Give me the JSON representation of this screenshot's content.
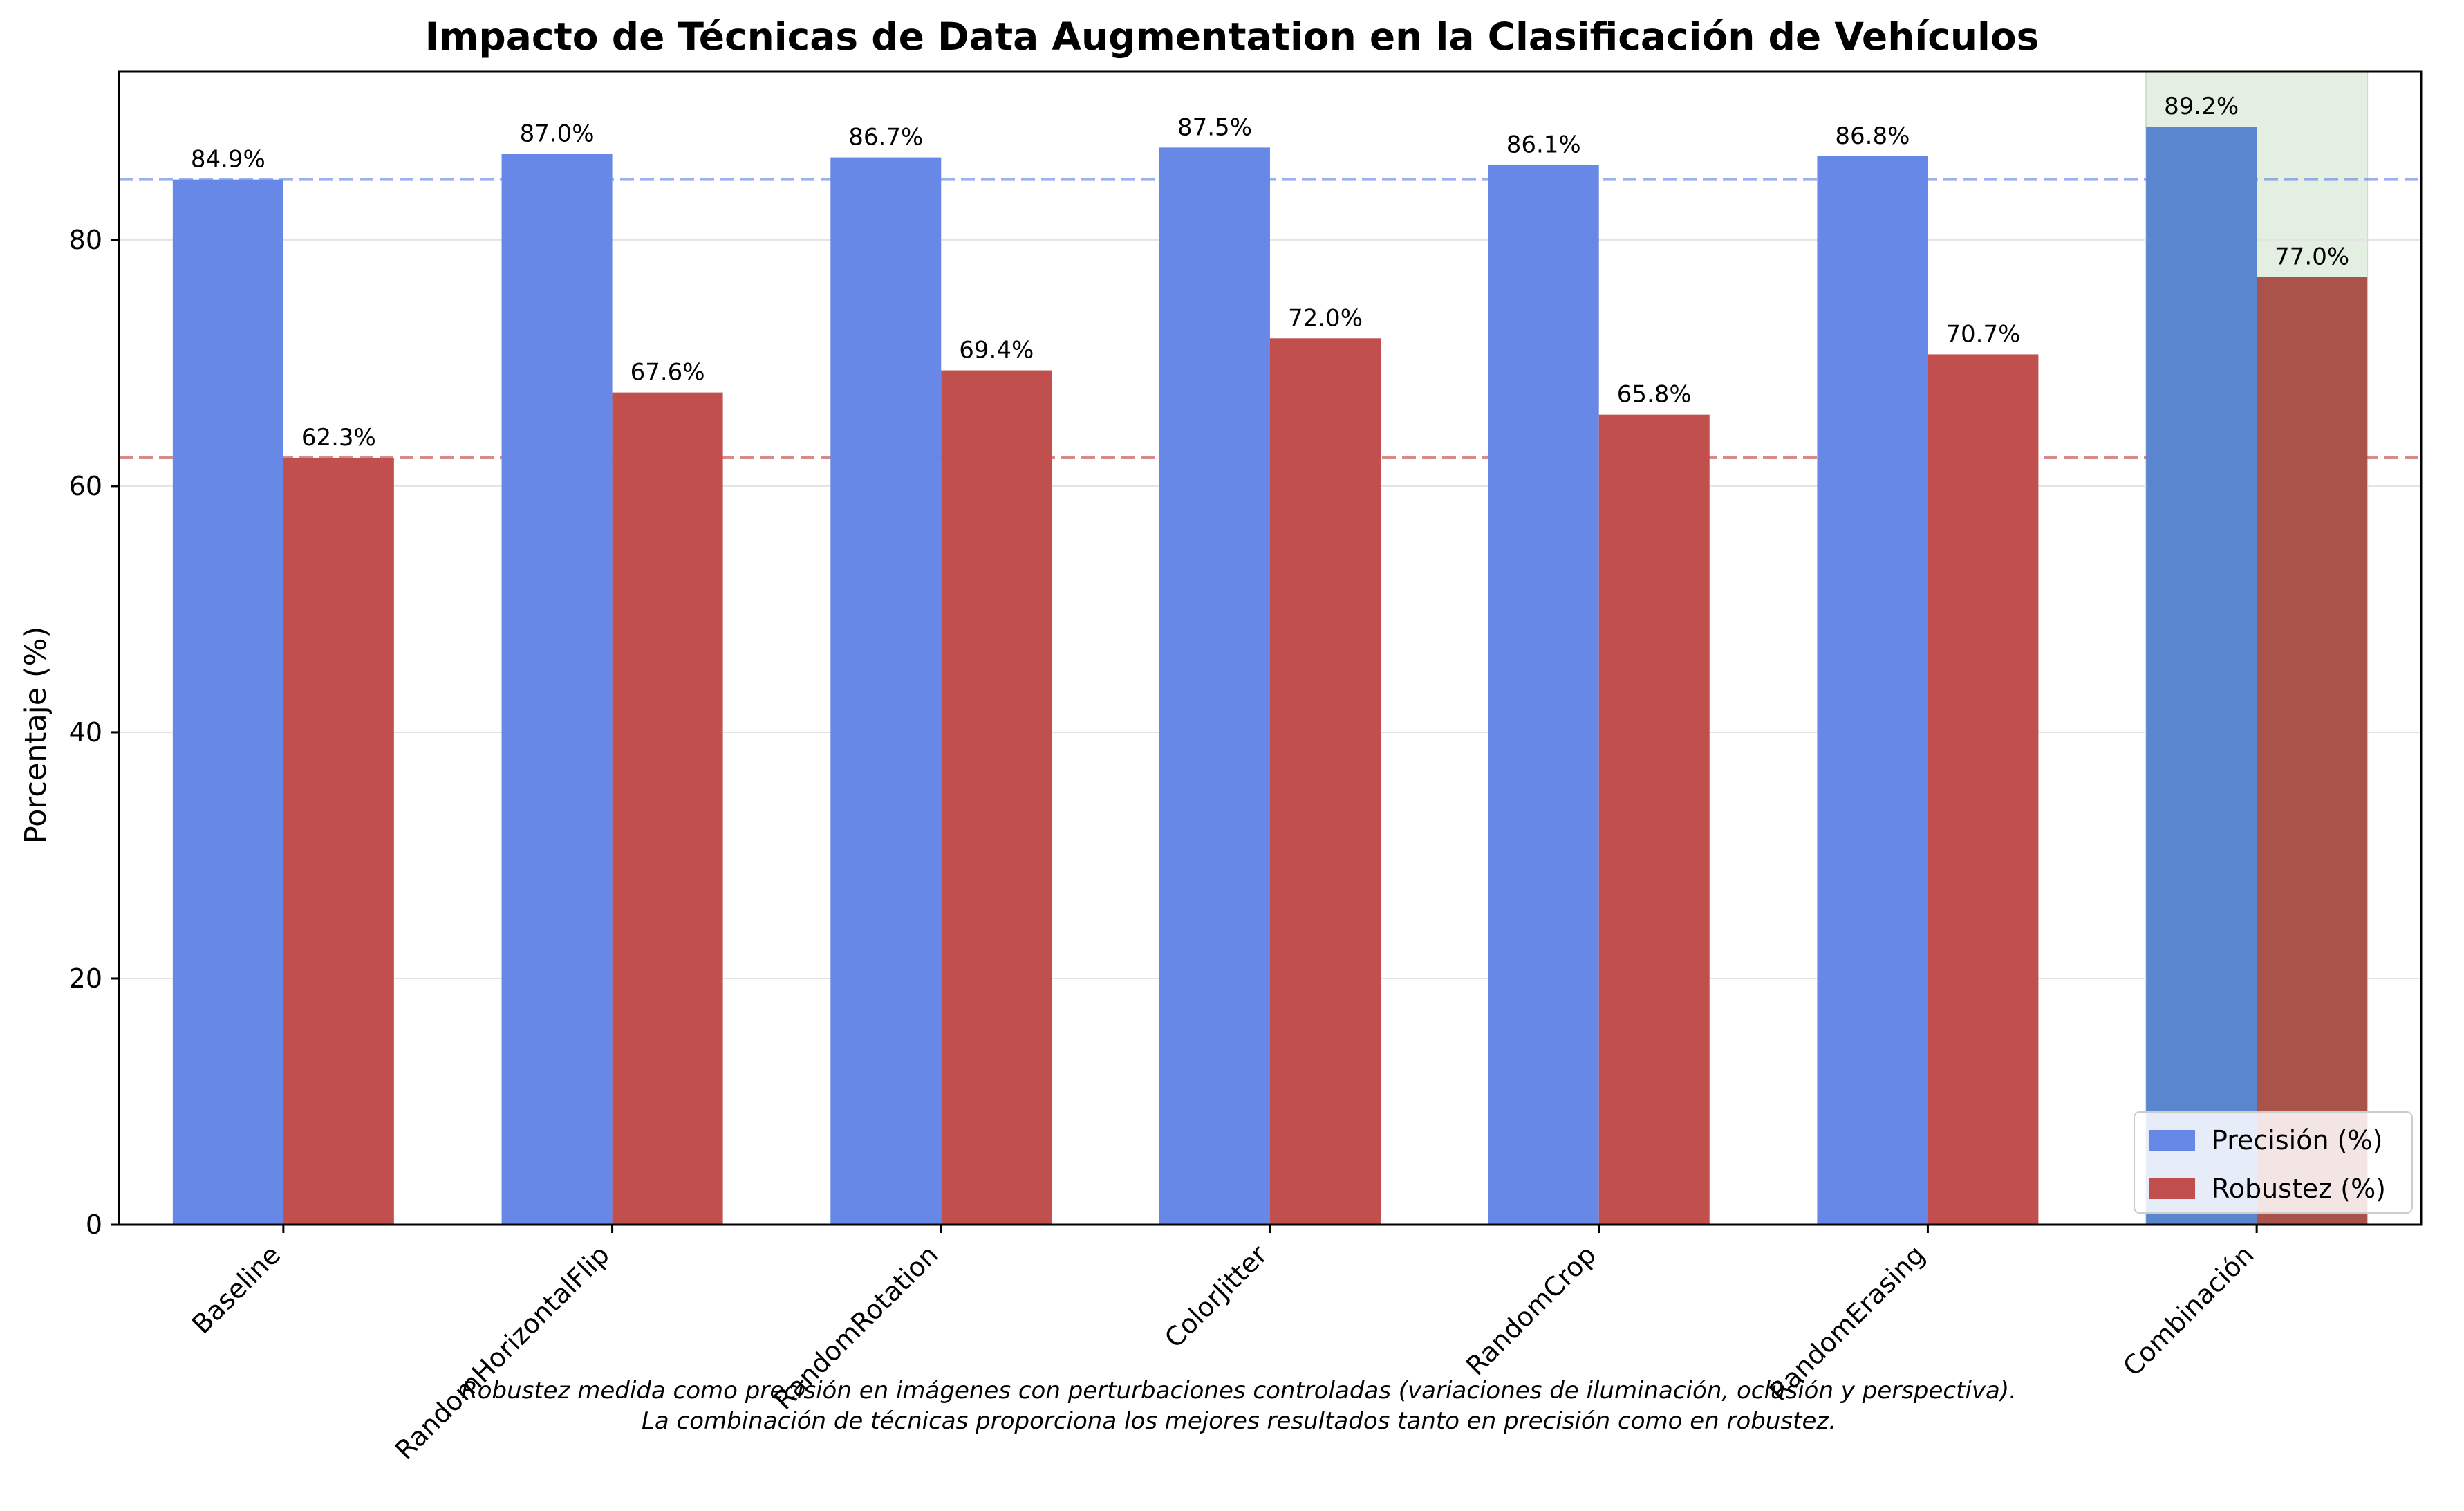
{
  "chart_data": {
    "type": "bar",
    "title": "Impacto de Técnicas de Data Augmentation en la Clasificación de Vehículos",
    "xlabel": "",
    "ylabel": "Porcentaje (%)",
    "ylim": [
      0,
      93.7
    ],
    "yticks": [
      0,
      20,
      40,
      60,
      80
    ],
    "grid": "y",
    "legend_position": "bottom-right",
    "categories": [
      "Baseline",
      "RandomHorizontalFlip",
      "RandomRotation",
      "ColorJitter",
      "RandomCrop",
      "RandomErasing",
      "Combinación"
    ],
    "series": [
      {
        "name": "Precisión (%)",
        "color": "#6788e6",
        "highlight_color": "#5a86d0",
        "values": [
          84.9,
          87.0,
          86.7,
          87.5,
          86.1,
          86.8,
          89.2
        ],
        "labels": [
          "84.9%",
          "87.0%",
          "86.7%",
          "87.5%",
          "86.1%",
          "86.8%",
          "89.2%"
        ]
      },
      {
        "name": "Robustez (%)",
        "color": "#c04f4e",
        "highlight_color": "#a9534a",
        "values": [
          62.3,
          67.6,
          69.4,
          72.0,
          65.8,
          70.7,
          77.0
        ],
        "labels": [
          "62.3%",
          "67.6%",
          "69.4%",
          "72.0%",
          "65.8%",
          "70.7%",
          "77.0%"
        ]
      }
    ],
    "reference_lines": [
      {
        "series": "Precisión (%)",
        "value": 84.9,
        "color": "#6788e6"
      },
      {
        "series": "Robustez (%)",
        "value": 62.3,
        "color": "#c04f4e"
      }
    ],
    "highlight_category": "Combinación",
    "highlight_color": "#e3efe1",
    "footnotes": [
      "Robustez medida como precisión en imágenes con perturbaciones controladas (variaciones de iluminación, oclusión y perspectiva).",
      "La combinación de técnicas proporciona los mejores resultados tanto en precisión como en robustez."
    ]
  }
}
